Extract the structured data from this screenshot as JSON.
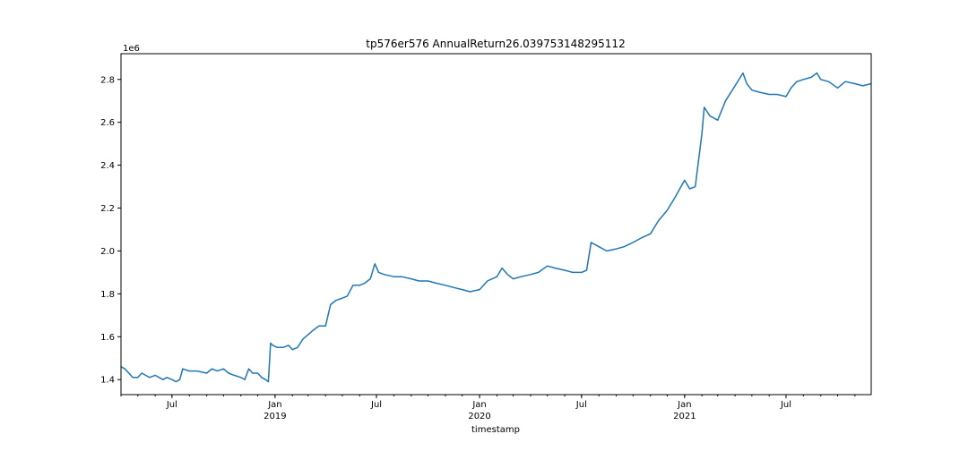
{
  "chart_data": {
    "type": "line",
    "title": "tp576er576 AnnualReturn26.039753148295112",
    "xlabel": "timestamp",
    "ylabel": "",
    "y_offset_label": "1e6",
    "ylim": [
      1.33,
      2.92
    ],
    "xlim": [
      "2018-04-01",
      "2021-11-30"
    ],
    "yticks": [
      {
        "value": 1.4,
        "label": "1.4"
      },
      {
        "value": 1.6,
        "label": "1.6"
      },
      {
        "value": 1.8,
        "label": "1.8"
      },
      {
        "value": 2.0,
        "label": "2.0"
      },
      {
        "value": 2.2,
        "label": "2.2"
      },
      {
        "value": 2.4,
        "label": "2.4"
      },
      {
        "value": 2.6,
        "label": "2.6"
      },
      {
        "value": 2.8,
        "label": "2.8"
      }
    ],
    "xticks": [
      {
        "date": "2018-07-01",
        "label": "Jul",
        "sublabel": ""
      },
      {
        "date": "2019-01-01",
        "label": "Jan",
        "sublabel": "2019"
      },
      {
        "date": "2019-07-01",
        "label": "Jul",
        "sublabel": ""
      },
      {
        "date": "2020-01-01",
        "label": "Jan",
        "sublabel": "2020"
      },
      {
        "date": "2020-07-01",
        "label": "Jul",
        "sublabel": ""
      },
      {
        "date": "2021-01-01",
        "label": "Jan",
        "sublabel": "2021"
      },
      {
        "date": "2021-07-01",
        "label": "Jul",
        "sublabel": ""
      }
    ],
    "line_color": "#1f77b4",
    "grid": false,
    "series": [
      {
        "name": "",
        "points": [
          [
            "2018-04-01",
            1.46
          ],
          [
            "2018-04-08",
            1.45
          ],
          [
            "2018-04-15",
            1.43
          ],
          [
            "2018-04-22",
            1.41
          ],
          [
            "2018-05-01",
            1.41
          ],
          [
            "2018-05-08",
            1.43
          ],
          [
            "2018-05-15",
            1.42
          ],
          [
            "2018-05-22",
            1.41
          ],
          [
            "2018-06-01",
            1.42
          ],
          [
            "2018-06-08",
            1.41
          ],
          [
            "2018-06-15",
            1.4
          ],
          [
            "2018-06-22",
            1.41
          ],
          [
            "2018-07-01",
            1.4
          ],
          [
            "2018-07-08",
            1.39
          ],
          [
            "2018-07-15",
            1.4
          ],
          [
            "2018-07-20",
            1.45
          ],
          [
            "2018-08-01",
            1.44
          ],
          [
            "2018-08-15",
            1.44
          ],
          [
            "2018-09-01",
            1.43
          ],
          [
            "2018-09-10",
            1.45
          ],
          [
            "2018-09-20",
            1.44
          ],
          [
            "2018-10-01",
            1.45
          ],
          [
            "2018-10-10",
            1.43
          ],
          [
            "2018-10-20",
            1.42
          ],
          [
            "2018-11-01",
            1.41
          ],
          [
            "2018-11-08",
            1.4
          ],
          [
            "2018-11-15",
            1.45
          ],
          [
            "2018-11-22",
            1.43
          ],
          [
            "2018-12-01",
            1.43
          ],
          [
            "2018-12-08",
            1.41
          ],
          [
            "2018-12-15",
            1.4
          ],
          [
            "2018-12-20",
            1.39
          ],
          [
            "2018-12-24",
            1.57
          ],
          [
            "2018-12-28",
            1.56
          ],
          [
            "2019-01-05",
            1.55
          ],
          [
            "2019-01-15",
            1.55
          ],
          [
            "2019-01-25",
            1.56
          ],
          [
            "2019-02-01",
            1.54
          ],
          [
            "2019-02-10",
            1.55
          ],
          [
            "2019-02-20",
            1.59
          ],
          [
            "2019-03-01",
            1.61
          ],
          [
            "2019-03-10",
            1.63
          ],
          [
            "2019-03-20",
            1.65
          ],
          [
            "2019-04-01",
            1.65
          ],
          [
            "2019-04-10",
            1.75
          ],
          [
            "2019-04-20",
            1.77
          ],
          [
            "2019-05-01",
            1.78
          ],
          [
            "2019-05-10",
            1.79
          ],
          [
            "2019-05-20",
            1.84
          ],
          [
            "2019-06-01",
            1.84
          ],
          [
            "2019-06-10",
            1.85
          ],
          [
            "2019-06-20",
            1.87
          ],
          [
            "2019-06-28",
            1.94
          ],
          [
            "2019-07-05",
            1.9
          ],
          [
            "2019-07-15",
            1.89
          ],
          [
            "2019-08-01",
            1.88
          ],
          [
            "2019-08-15",
            1.88
          ],
          [
            "2019-09-01",
            1.87
          ],
          [
            "2019-09-15",
            1.86
          ],
          [
            "2019-10-01",
            1.86
          ],
          [
            "2019-10-15",
            1.85
          ],
          [
            "2019-11-01",
            1.84
          ],
          [
            "2019-11-15",
            1.83
          ],
          [
            "2019-12-01",
            1.82
          ],
          [
            "2019-12-15",
            1.81
          ],
          [
            "2020-01-01",
            1.82
          ],
          [
            "2020-01-15",
            1.86
          ],
          [
            "2020-02-01",
            1.88
          ],
          [
            "2020-02-10",
            1.92
          ],
          [
            "2020-02-20",
            1.89
          ],
          [
            "2020-03-01",
            1.87
          ],
          [
            "2020-03-15",
            1.88
          ],
          [
            "2020-04-01",
            1.89
          ],
          [
            "2020-04-15",
            1.9
          ],
          [
            "2020-05-01",
            1.93
          ],
          [
            "2020-05-15",
            1.92
          ],
          [
            "2020-06-01",
            1.91
          ],
          [
            "2020-06-15",
            1.9
          ],
          [
            "2020-07-01",
            1.9
          ],
          [
            "2020-07-10",
            1.91
          ],
          [
            "2020-07-18",
            2.04
          ],
          [
            "2020-08-01",
            2.02
          ],
          [
            "2020-08-15",
            2.0
          ],
          [
            "2020-09-01",
            2.01
          ],
          [
            "2020-09-15",
            2.02
          ],
          [
            "2020-10-01",
            2.04
          ],
          [
            "2020-10-15",
            2.06
          ],
          [
            "2020-11-01",
            2.08
          ],
          [
            "2020-11-15",
            2.14
          ],
          [
            "2020-12-01",
            2.19
          ],
          [
            "2020-12-15",
            2.25
          ],
          [
            "2021-01-01",
            2.33
          ],
          [
            "2021-01-10",
            2.29
          ],
          [
            "2021-01-20",
            2.3
          ],
          [
            "2021-02-01",
            2.55
          ],
          [
            "2021-02-05",
            2.67
          ],
          [
            "2021-02-15",
            2.63
          ],
          [
            "2021-03-01",
            2.61
          ],
          [
            "2021-03-15",
            2.7
          ],
          [
            "2021-04-01",
            2.77
          ],
          [
            "2021-04-15",
            2.83
          ],
          [
            "2021-04-22",
            2.78
          ],
          [
            "2021-05-01",
            2.75
          ],
          [
            "2021-05-15",
            2.74
          ],
          [
            "2021-06-01",
            2.73
          ],
          [
            "2021-06-15",
            2.73
          ],
          [
            "2021-07-01",
            2.72
          ],
          [
            "2021-07-10",
            2.76
          ],
          [
            "2021-07-20",
            2.79
          ],
          [
            "2021-08-01",
            2.8
          ],
          [
            "2021-08-15",
            2.81
          ],
          [
            "2021-08-25",
            2.83
          ],
          [
            "2021-09-01",
            2.8
          ],
          [
            "2021-09-15",
            2.79
          ],
          [
            "2021-10-01",
            2.76
          ],
          [
            "2021-10-15",
            2.79
          ],
          [
            "2021-11-01",
            2.78
          ],
          [
            "2021-11-15",
            2.77
          ],
          [
            "2021-11-30",
            2.78
          ]
        ]
      }
    ]
  }
}
